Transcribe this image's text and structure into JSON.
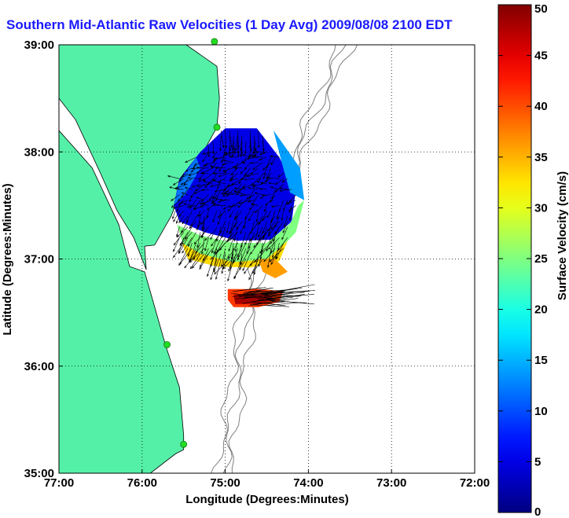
{
  "title": "Southern Mid-Atlantic Raw Velocities (1 Day Avg) 2009/08/08 2100 EDT",
  "colors": {
    "title": "#1a1aff",
    "land": "#55f0a8",
    "coast": "#000000",
    "water": "#ffffff",
    "bathymetry": "#808080",
    "site_marker": "#22dd22",
    "arrows": "#000000"
  },
  "chart_data": {
    "type": "map",
    "xlabel": "Longitude (Degrees:Minutes)",
    "ylabel": "Latitude (Degrees:Minutes)",
    "xlim": [
      -77,
      -72
    ],
    "ylim": [
      35,
      39
    ],
    "x_ticks": [
      {
        "value": -77,
        "label": "77:00"
      },
      {
        "value": -76,
        "label": "76:00"
      },
      {
        "value": -75,
        "label": "75:00"
      },
      {
        "value": -74,
        "label": "74:00"
      },
      {
        "value": -73,
        "label": "73:00"
      },
      {
        "value": -72,
        "label": "72:00"
      }
    ],
    "y_ticks": [
      {
        "value": 35,
        "label": "35:00"
      },
      {
        "value": 36,
        "label": "36:00"
      },
      {
        "value": 37,
        "label": "37:00"
      },
      {
        "value": 38,
        "label": "38:00"
      },
      {
        "value": 39,
        "label": "39:00"
      }
    ],
    "grid": "dotted",
    "colorbar": {
      "label": "Surface Velocity (cm/s)",
      "min": 0,
      "max": 50,
      "ticks": [
        0,
        5,
        10,
        15,
        20,
        25,
        30,
        35,
        40,
        45,
        50
      ],
      "colormap": "jet"
    },
    "site_markers": [
      {
        "lon": -75.13,
        "lat": 39.03
      },
      {
        "lon": -75.1,
        "lat": 38.23
      },
      {
        "lon": -75.7,
        "lat": 36.2
      },
      {
        "lon": -75.5,
        "lat": 35.27
      }
    ],
    "land_polygons": [
      [
        [
          -77,
          39
        ],
        [
          -75.47,
          39
        ],
        [
          -75.1,
          38.8
        ],
        [
          -75.07,
          38.5
        ],
        [
          -75.1,
          38.23
        ],
        [
          -75.3,
          37.95
        ],
        [
          -75.5,
          37.7
        ],
        [
          -75.65,
          37.4
        ],
        [
          -75.85,
          37.13
        ],
        [
          -75.97,
          37.12
        ],
        [
          -75.95,
          36.9
        ],
        [
          -76.1,
          37.2
        ],
        [
          -76.3,
          37.45
        ],
        [
          -76.5,
          37.8
        ],
        [
          -76.8,
          38.3
        ],
        [
          -77,
          38.5
        ]
      ],
      [
        [
          -77,
          38.2
        ],
        [
          -76.6,
          37.85
        ],
        [
          -76.28,
          37.32
        ],
        [
          -76.15,
          36.93
        ],
        [
          -75.97,
          36.88
        ],
        [
          -75.83,
          36.5
        ],
        [
          -75.72,
          36.2
        ],
        [
          -75.55,
          35.8
        ],
        [
          -75.5,
          35.35
        ],
        [
          -75.5,
          35.22
        ],
        [
          -75.6,
          35.18
        ],
        [
          -75.9,
          35.0
        ],
        [
          -77,
          35.0
        ]
      ]
    ],
    "coverage_patches": [
      {
        "speed_cm_s": 5,
        "polygon": [
          [
            -75.62,
            37.5
          ],
          [
            -75.55,
            37.75
          ],
          [
            -75.3,
            38.0
          ],
          [
            -75.0,
            38.22
          ],
          [
            -74.62,
            38.22
          ],
          [
            -74.35,
            37.95
          ],
          [
            -74.15,
            37.65
          ],
          [
            -74.2,
            37.35
          ],
          [
            -74.45,
            37.18
          ],
          [
            -74.85,
            37.17
          ],
          [
            -75.25,
            37.25
          ],
          [
            -75.55,
            37.35
          ]
        ]
      },
      {
        "speed_cm_s": 14,
        "polygon": [
          [
            -74.42,
            38.2
          ],
          [
            -74.1,
            37.85
          ],
          [
            -74.05,
            37.55
          ],
          [
            -74.22,
            37.62
          ],
          [
            -74.32,
            37.9
          ]
        ]
      },
      {
        "speed_cm_s": 25,
        "polygon": [
          [
            -75.58,
            37.32
          ],
          [
            -75.3,
            37.22
          ],
          [
            -74.9,
            37.15
          ],
          [
            -74.5,
            37.15
          ],
          [
            -74.22,
            37.33
          ],
          [
            -74.12,
            37.5
          ],
          [
            -74.05,
            37.55
          ],
          [
            -74.15,
            37.25
          ],
          [
            -74.45,
            37.0
          ],
          [
            -74.85,
            36.95
          ],
          [
            -75.25,
            37.03
          ],
          [
            -75.5,
            37.12
          ]
        ]
      },
      {
        "speed_cm_s": 12,
        "polygon": [
          [
            -75.35,
            37.95
          ],
          [
            -75.55,
            37.72
          ],
          [
            -75.62,
            37.5
          ],
          [
            -75.48,
            37.6
          ],
          [
            -75.3,
            37.85
          ]
        ]
      },
      {
        "speed_cm_s": 33,
        "polygon": [
          [
            -75.52,
            37.15
          ],
          [
            -75.3,
            37.05
          ],
          [
            -74.9,
            36.97
          ],
          [
            -74.5,
            37.0
          ],
          [
            -74.25,
            37.17
          ],
          [
            -74.35,
            36.98
          ],
          [
            -74.7,
            36.92
          ],
          [
            -75.1,
            36.93
          ],
          [
            -75.45,
            37.0
          ]
        ]
      },
      {
        "speed_cm_s": 36,
        "polygon": [
          [
            -74.6,
            37.0
          ],
          [
            -74.4,
            37.0
          ],
          [
            -74.25,
            36.88
          ],
          [
            -74.4,
            36.82
          ],
          [
            -74.55,
            36.88
          ]
        ]
      },
      {
        "speed_cm_s": 41,
        "polygon": [
          [
            -74.97,
            36.72
          ],
          [
            -74.6,
            36.72
          ],
          [
            -74.3,
            36.7
          ],
          [
            -74.35,
            36.6
          ],
          [
            -74.6,
            36.55
          ],
          [
            -74.9,
            36.55
          ],
          [
            -74.97,
            36.62
          ]
        ]
      },
      {
        "speed_cm_s": 48,
        "polygon": [
          [
            -74.9,
            36.67
          ],
          [
            -74.5,
            36.68
          ],
          [
            -74.4,
            36.62
          ],
          [
            -74.6,
            36.58
          ],
          [
            -74.88,
            36.58
          ]
        ]
      }
    ]
  }
}
